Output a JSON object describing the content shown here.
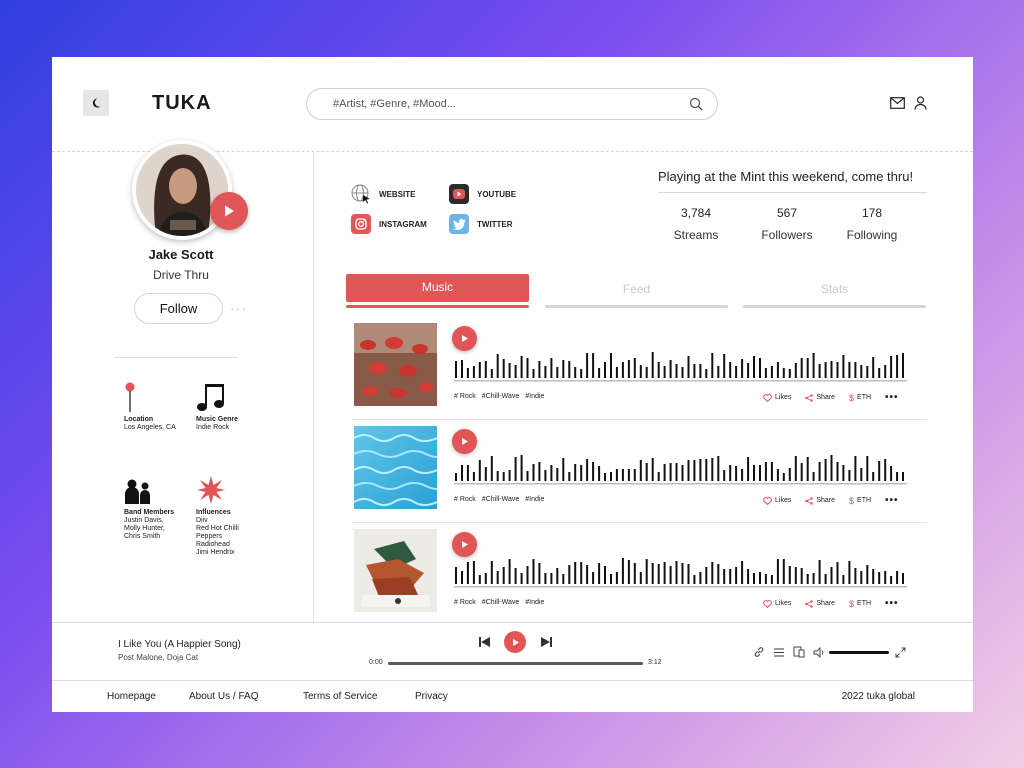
{
  "app": {
    "title": "TUKA"
  },
  "search": {
    "placeholder": "#Artist, #Genre, #Mood..."
  },
  "artist": {
    "name": "Jake Scott",
    "album": "Drive Thru",
    "follow_label": "Follow",
    "more": "···"
  },
  "info": {
    "location": {
      "title": "Location",
      "value": "Los Angeles, CA"
    },
    "genre": {
      "title": "Music Genre",
      "value": "Indie Rock"
    },
    "band": {
      "title": "Band Members",
      "values": [
        "Justin Davis,",
        "Molly Hunter,",
        "Chris Smith"
      ]
    },
    "influences": {
      "title": "Influences",
      "values": [
        "Diiv",
        "Red Hot Chilli",
        "Peppers",
        "Radiohead",
        "Jimi Hendrix"
      ]
    }
  },
  "links": {
    "website": "WEBSITE",
    "youtube": "YOUTUBE",
    "instagram": "INSTAGRAM",
    "twitter": "TWITTER"
  },
  "status": "Playing at the Mint this weekend, come thru!",
  "stats": [
    {
      "value": "3,784",
      "label": "Streams"
    },
    {
      "value": "567",
      "label": "Followers"
    },
    {
      "value": "178",
      "label": "Following"
    }
  ],
  "tabs": [
    {
      "label": "Music",
      "active": true
    },
    {
      "label": "Feed",
      "active": false
    },
    {
      "label": "Stats",
      "active": false
    }
  ],
  "tracks": [
    {
      "cover": "red-figurines",
      "tags": [
        "# Rock",
        "#Chill-Wave",
        "#Indie"
      ],
      "likes": "Likes",
      "share": "Share",
      "eth": "ETH"
    },
    {
      "cover": "pool-water",
      "tags": [
        "# Rock",
        "#Chill-Wave",
        "#Indie"
      ],
      "likes": "Likes",
      "share": "Share",
      "eth": "ETH"
    },
    {
      "cover": "green-sculpture",
      "tags": [
        "# Rock",
        "#Chill-Wave",
        "#Indie"
      ],
      "likes": "Likes",
      "share": "Share",
      "eth": "ETH"
    }
  ],
  "player": {
    "title": "I Like You (A Happier Song)",
    "artist": "Post Malone, Doja Cat",
    "time_current": "0:00",
    "time_total": "3:12",
    "progress": 0,
    "volume": 1
  },
  "footer": {
    "links": [
      "Homepage",
      "About Us / FAQ",
      "Terms of Service",
      "Privacy"
    ],
    "copyright": "2022  tuka global"
  },
  "colors": {
    "accent": "#e05555",
    "youtube": "#2b2b2b",
    "instagram": "#e05555",
    "twitter": "#6cb6e6"
  },
  "icons": [
    "moon-icon",
    "search-icon",
    "mail-icon",
    "user-icon",
    "play-icon",
    "globe-icon",
    "youtube-icon",
    "instagram-icon",
    "twitter-icon",
    "pin-icon",
    "music-note-icon",
    "people-icon",
    "star-burst-icon",
    "heart-icon",
    "share-icon",
    "dollar-icon",
    "prev-icon",
    "next-icon",
    "link-icon",
    "queue-icon",
    "device-icon",
    "volume-icon",
    "expand-icon"
  ]
}
